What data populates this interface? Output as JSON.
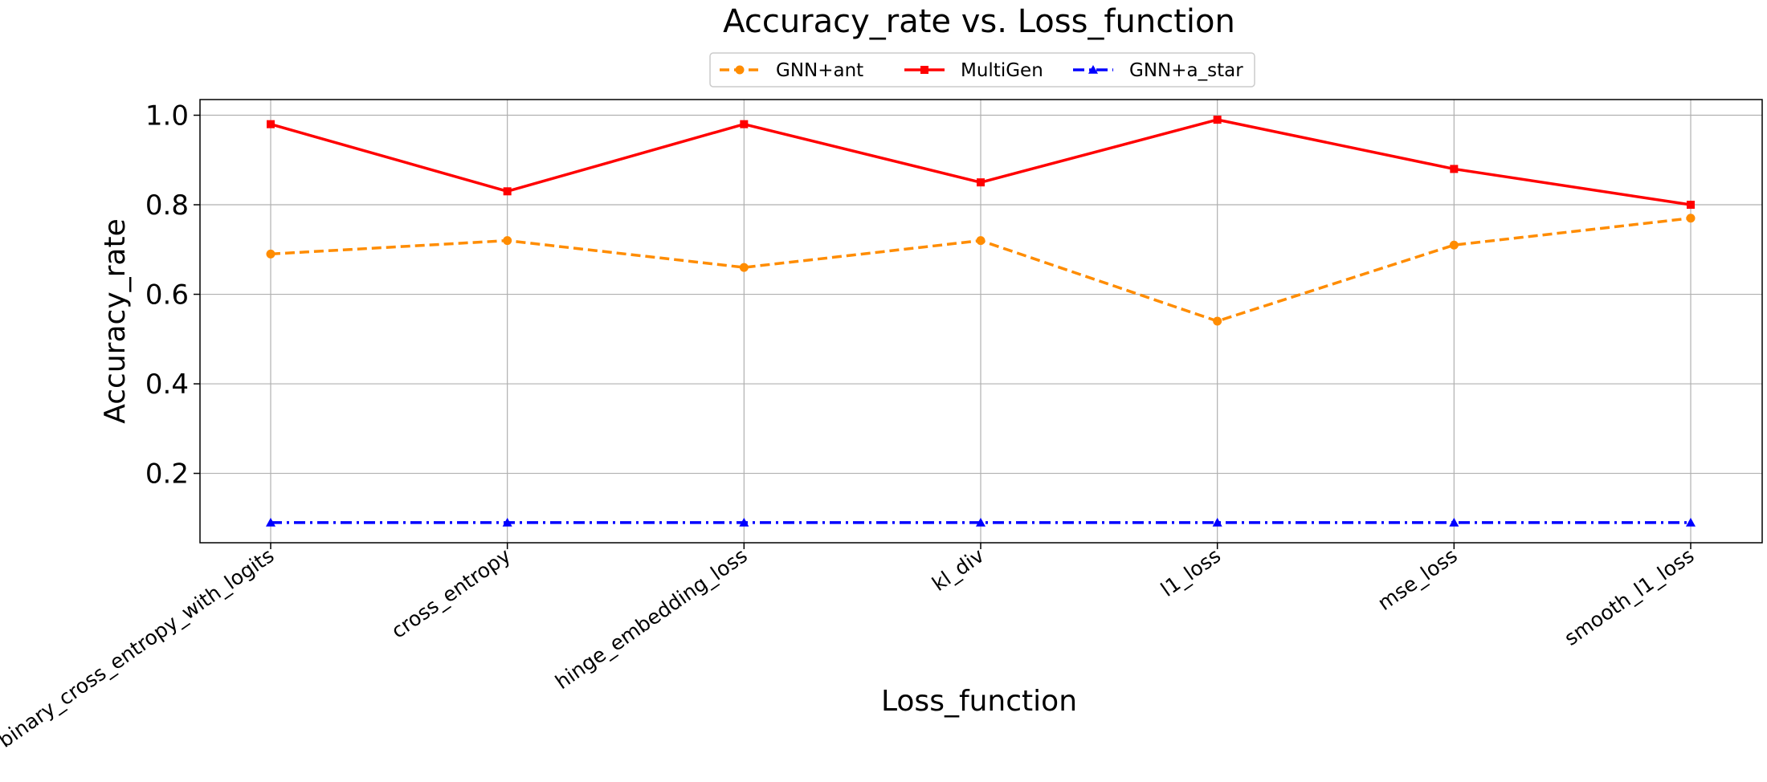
{
  "chart_data": {
    "type": "line",
    "title": "Accuracy_rate vs. Loss_function",
    "xlabel": "Loss_function",
    "ylabel": "Accuracy_rate",
    "categories": [
      "binary_cross_entropy_with_logits",
      "cross_entropy",
      "hinge_embedding_loss",
      "kl_div",
      "l1_loss",
      "mse_loss",
      "smooth_l1_loss"
    ],
    "ylim": [
      0.045,
      1.035
    ],
    "yticks": [
      0.2,
      0.4,
      0.6,
      0.8,
      1.0
    ],
    "ytick_labels": [
      "0.2",
      "0.4",
      "0.6",
      "0.8",
      "1.0"
    ],
    "grid": true,
    "legend_position": "top-center",
    "series": [
      {
        "name": "GNN+ant",
        "color": "#ff8c00",
        "style": "dashed",
        "marker": "circle",
        "values": [
          0.69,
          0.72,
          0.66,
          0.72,
          0.54,
          0.71,
          0.77
        ]
      },
      {
        "name": "MultiGen",
        "color": "#ff0000",
        "style": "solid",
        "marker": "square",
        "values": [
          0.98,
          0.83,
          0.98,
          0.85,
          0.99,
          0.88,
          0.8
        ]
      },
      {
        "name": "GNN+a_star",
        "color": "#0000ff",
        "style": "dashdot",
        "marker": "triangle",
        "values": [
          0.09,
          0.09,
          0.09,
          0.09,
          0.09,
          0.09,
          0.09
        ]
      }
    ]
  }
}
